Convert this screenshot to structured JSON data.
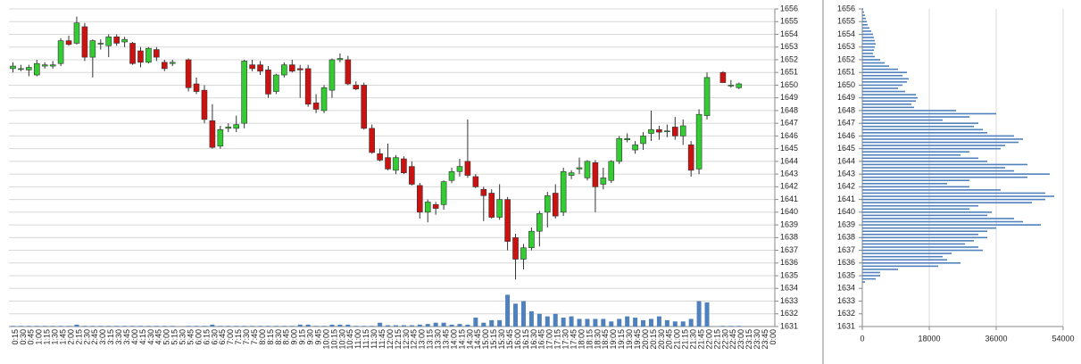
{
  "chart_data": [
    {
      "type": "candlestick",
      "categories": [
        "0:15",
        "0:30",
        "0:45",
        "1:00",
        "1:15",
        "1:30",
        "1:45",
        "2:00",
        "2:15",
        "2:30",
        "2:45",
        "3:00",
        "3:15",
        "3:30",
        "3:45",
        "4:00",
        "4:15",
        "4:30",
        "4:45",
        "5:00",
        "5:15",
        "5:30",
        "5:45",
        "6:00",
        "6:15",
        "6:30",
        "6:45",
        "7:00",
        "7:15",
        "7:30",
        "7:45",
        "8:00",
        "8:15",
        "8:30",
        "8:45",
        "9:00",
        "9:15",
        "9:30",
        "9:45",
        "10:00",
        "10:15",
        "10:30",
        "10:45",
        "11:00",
        "11:15",
        "11:30",
        "11:45",
        "12:00",
        "12:15",
        "12:30",
        "12:45",
        "13:00",
        "13:15",
        "13:30",
        "13:45",
        "14:00",
        "14:15",
        "14:30",
        "14:45",
        "15:00",
        "15:15",
        "15:30",
        "15:45",
        "16:00",
        "16:15",
        "16:30",
        "16:45",
        "17:00",
        "17:15",
        "17:30",
        "17:45",
        "18:00",
        "18:15",
        "18:30",
        "18:45",
        "19:00",
        "19:15",
        "19:30",
        "19:45",
        "20:00",
        "20:15",
        "20:30",
        "20:45",
        "21:00",
        "21:15",
        "21:30",
        "21:45",
        "22:00",
        "22:15",
        "22:30",
        "22:45",
        "23:00",
        "23:15",
        "23:30",
        "23:45",
        "0:00"
      ],
      "open": [
        1651.3,
        1651.3,
        1651.2,
        1650.8,
        1651.5,
        1651.5,
        1651.7,
        1653.5,
        1653.3,
        1654.6,
        1652.2,
        1653.3,
        1653.1,
        1653.8,
        1653.4,
        1653.3,
        1652.7,
        1651.8,
        1652.8,
        1651.8,
        1651.7,
        null,
        1652.0,
        1650.1,
        1649.6,
        1647.2,
        1645.2,
        1646.6,
        1646.6,
        1647.0,
        1651.6,
        1651.6,
        1651.2,
        1649.5,
        1650.8,
        1651.6,
        1651.3,
        1651.3,
        1648.6,
        1648.0,
        1649.6,
        1652.0,
        1652.0,
        1650.0,
        1650.0,
        1646.6,
        1644.6,
        1644.3,
        1643.3,
        1644.2,
        1643.6,
        1642.1,
        1640.0,
        1640.6,
        1640.6,
        1642.5,
        1643.2,
        1644.0,
        1642.8,
        1641.8,
        1641.5,
        1639.6,
        1641.0,
        1638.0,
        1636.3,
        1637.2,
        1638.5,
        1640.0,
        1641.5,
        1640.0,
        1642.9,
        1643.4,
        1642.7,
        1643.9,
        1642.2,
        1642.5,
        1644.0,
        1645.7,
        1644.9,
        1645.4,
        1646.2,
        1646.5,
        1646.4,
        1646.7,
        1646.0,
        1645.3,
        1643.4,
        1647.6,
        null,
        1651.0,
        1650.0,
        1649.8,
        null,
        null,
        null,
        null
      ],
      "high": [
        1651.8,
        1651.6,
        1651.6,
        1652.0,
        1651.8,
        1651.9,
        1653.7,
        1653.9,
        1655.4,
        1654.9,
        1653.6,
        1653.6,
        1654.0,
        1654.0,
        1653.8,
        1653.4,
        1653.0,
        1653.0,
        1653.0,
        1652.0,
        1652.0,
        null,
        1652.1,
        1650.6,
        1650.0,
        1648.5,
        1646.8,
        1647.0,
        1647.6,
        1652.0,
        1652.0,
        1651.9,
        1651.5,
        1650.9,
        1651.8,
        1652.0,
        1651.6,
        1651.6,
        1649.3,
        1650.0,
        1652.1,
        1652.5,
        1652.3,
        1650.3,
        1650.2,
        1646.9,
        1645.0,
        1645.4,
        1644.5,
        1644.4,
        1644.0,
        1642.3,
        1641.0,
        1640.8,
        1642.5,
        1643.5,
        1644.2,
        1647.3,
        1643.0,
        1642.0,
        1641.8,
        1642.2,
        1641.2,
        1638.3,
        1637.5,
        1638.8,
        1640.1,
        1641.6,
        1642.2,
        1643.5,
        1643.3,
        1644.3,
        1644.1,
        1644.1,
        1643.5,
        1644.1,
        1646.0,
        1646.2,
        1645.6,
        1646.3,
        1648.0,
        1646.8,
        1646.9,
        1647.5,
        1647.3,
        1645.6,
        1648.1,
        1651.0,
        null,
        1651.1,
        1650.4,
        1650.2,
        null,
        null,
        null,
        null
      ],
      "low": [
        1651.0,
        1651.1,
        1650.7,
        1650.7,
        1651.3,
        1651.3,
        1651.5,
        1653.1,
        1653.2,
        1651.9,
        1650.6,
        1652.8,
        1652.2,
        1653.1,
        1653.0,
        1651.6,
        1651.4,
        1651.7,
        1651.9,
        1651.1,
        1651.5,
        null,
        1649.5,
        1649.3,
        1647.0,
        1645.0,
        1645.0,
        1646.3,
        1646.3,
        1646.6,
        1651.1,
        1650.8,
        1649.0,
        1649.3,
        1650.6,
        1651.0,
        1649.0,
        1648.3,
        1647.8,
        1647.8,
        1649.0,
        1651.8,
        1650.0,
        1649.6,
        1646.5,
        1644.6,
        1644.0,
        1643.3,
        1643.0,
        1643.0,
        1642.1,
        1639.5,
        1639.2,
        1639.8,
        1640.2,
        1642.3,
        1642.8,
        1642.7,
        1641.9,
        1639.3,
        1639.5,
        1639.4,
        1637.0,
        1634.7,
        1635.5,
        1637.0,
        1637.3,
        1638.8,
        1639.5,
        1639.7,
        1642.6,
        1643.0,
        1642.5,
        1640.0,
        1641.8,
        1642.3,
        1643.8,
        1645.5,
        1644.6,
        1644.9,
        1645.6,
        1645.7,
        1645.9,
        1645.7,
        1645.3,
        1642.8,
        1643.0,
        1647.3,
        null,
        1650.2,
        1649.8,
        1649.7,
        null,
        null,
        null,
        null
      ],
      "close": [
        1651.5,
        1651.3,
        1651.4,
        1651.7,
        1651.6,
        1651.6,
        1653.5,
        1653.2,
        1654.9,
        1652.2,
        1653.5,
        1653.3,
        1653.8,
        1653.3,
        1653.6,
        1651.7,
        1651.8,
        1652.9,
        1652.2,
        1651.3,
        1651.8,
        null,
        1649.8,
        1649.5,
        1647.3,
        1645.1,
        1646.5,
        1646.7,
        1646.9,
        1651.9,
        1651.3,
        1651.1,
        1649.3,
        1650.8,
        1651.6,
        1651.1,
        1651.2,
        1648.5,
        1648.1,
        1649.8,
        1652.0,
        1652.1,
        1650.1,
        1649.7,
        1646.6,
        1644.7,
        1644.1,
        1643.4,
        1644.3,
        1643.1,
        1642.2,
        1640.0,
        1640.8,
        1640.3,
        1642.4,
        1643.2,
        1643.6,
        1642.9,
        1642.0,
        1641.3,
        1639.6,
        1641.0,
        1637.7,
        1636.3,
        1637.2,
        1638.5,
        1639.9,
        1641.3,
        1639.7,
        1643.2,
        1643.1,
        1643.5,
        1644.0,
        1642.0,
        1642.7,
        1644.0,
        1645.8,
        1645.8,
        1645.3,
        1646.0,
        1646.5,
        1646.3,
        1646.4,
        1646.0,
        1646.8,
        1643.3,
        1647.7,
        1650.6,
        null,
        1650.2,
        1650.0,
        1650.1,
        null,
        null,
        null,
        null
      ],
      "volume": [
        0.05,
        0.05,
        0.05,
        0.05,
        0.05,
        0.05,
        0.05,
        0.05,
        0.15,
        0.05,
        0.05,
        0.05,
        0.05,
        0.05,
        0.05,
        0.05,
        0.05,
        0.05,
        0.05,
        0.05,
        0.05,
        null,
        0.05,
        0.05,
        0.05,
        0.15,
        0.05,
        0.05,
        0.05,
        0.05,
        0.05,
        0.05,
        0.05,
        0.05,
        0.05,
        0.05,
        0.15,
        0.15,
        0.05,
        0.05,
        0.15,
        0.15,
        0.15,
        0.05,
        0.05,
        0.05,
        0.3,
        0.1,
        0.1,
        0.1,
        0.1,
        0.15,
        0.2,
        0.3,
        0.3,
        0.15,
        0.2,
        0.15,
        0.7,
        0.3,
        0.5,
        0.5,
        2.5,
        1.8,
        2.0,
        1.2,
        1.0,
        0.8,
        1.0,
        0.7,
        0.8,
        0.6,
        0.6,
        0.6,
        0.6,
        0.4,
        0.6,
        0.8,
        0.7,
        0.5,
        0.6,
        0.8,
        0.5,
        0.4,
        0.4,
        0.6,
        2.0,
        1.9,
        null,
        0.05,
        0.05,
        0.05,
        null,
        null,
        null,
        null
      ],
      "up_color": "#33cc33",
      "down_color": "#cc1111",
      "volume_color": "#4f81bd",
      "ylim": [
        1631,
        1656
      ],
      "yticks": [
        1631,
        1632,
        1633,
        1634,
        1635,
        1636,
        1637,
        1638,
        1639,
        1640,
        1641,
        1642,
        1643,
        1644,
        1645,
        1646,
        1647,
        1648,
        1649,
        1650,
        1651,
        1652,
        1653,
        1654,
        1655,
        1656
      ],
      "grid": true
    },
    {
      "type": "barh",
      "levels": [
        1634.5,
        1634.75,
        1635,
        1635.25,
        1635.5,
        1635.75,
        1636,
        1636.25,
        1636.5,
        1636.75,
        1637,
        1637.25,
        1637.5,
        1637.75,
        1638,
        1638.25,
        1638.5,
        1638.75,
        1639,
        1639.25,
        1639.5,
        1639.75,
        1640,
        1640.25,
        1640.5,
        1640.75,
        1641,
        1641.25,
        1641.5,
        1641.75,
        1642,
        1642.25,
        1642.5,
        1642.75,
        1643,
        1643.25,
        1643.5,
        1643.75,
        1644,
        1644.25,
        1644.5,
        1644.75,
        1645,
        1645.25,
        1645.5,
        1645.75,
        1646,
        1646.25,
        1646.5,
        1646.75,
        1647,
        1647.25,
        1647.5,
        1647.75,
        1648,
        1648.25,
        1648.5,
        1648.75,
        1649,
        1649.25,
        1649.5,
        1649.75,
        1650,
        1650.25,
        1650.5,
        1650.75,
        1651,
        1651.25,
        1651.5,
        1651.75,
        1652,
        1652.25,
        1652.5,
        1652.75,
        1653,
        1653.25,
        1653.5,
        1653.75,
        1654,
        1654.25,
        1654.5,
        1654.75,
        1655,
        1655.25,
        1655.5,
        1655.75,
        1656
      ],
      "values": [
        720,
        3600,
        4800,
        4800,
        9600,
        20400,
        26400,
        22800,
        21600,
        24000,
        32400,
        31200,
        27600,
        30000,
        33600,
        31200,
        33600,
        36000,
        48000,
        43200,
        40800,
        33600,
        34800,
        28800,
        31200,
        45600,
        49200,
        51600,
        49200,
        37200,
        28800,
        22800,
        28800,
        44400,
        50400,
        40800,
        38400,
        44400,
        33600,
        31200,
        26400,
        28800,
        37200,
        38400,
        42000,
        43200,
        40800,
        33600,
        32400,
        30000,
        31200,
        21600,
        28800,
        36000,
        25200,
        13920,
        13200,
        14400,
        14880,
        14400,
        11520,
        9600,
        10800,
        12000,
        12480,
        10800,
        12000,
        9600,
        7200,
        6000,
        4800,
        3360,
        2880,
        3120,
        3360,
        3600,
        3360,
        3120,
        2880,
        2400,
        1920,
        1440,
        1200,
        960,
        720,
        480,
        240
      ],
      "color": "#4f81bd",
      "xlim": [
        0,
        54000
      ],
      "xticks": [
        0,
        18000,
        36000,
        54000
      ],
      "ylim": [
        1631,
        1656
      ],
      "yticks": [
        1631,
        1632,
        1633,
        1634,
        1635,
        1636,
        1637,
        1638,
        1639,
        1640,
        1641,
        1642,
        1643,
        1644,
        1645,
        1646,
        1647,
        1648,
        1649,
        1650,
        1651,
        1652,
        1653,
        1654,
        1655,
        1656
      ],
      "grid": true
    }
  ]
}
